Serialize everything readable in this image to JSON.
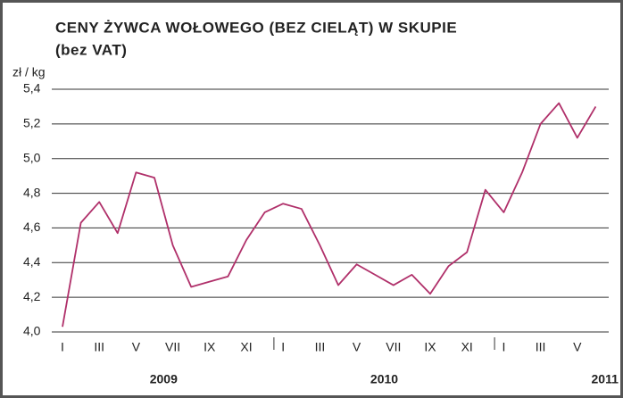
{
  "chart_data": {
    "type": "line",
    "title": "CENY ŻYWCA WOŁOWEGO (BEZ CIELĄT) W SKUPIE",
    "subtitle": "(bez VAT)",
    "y_label": "zł / kg",
    "categories": [
      "I",
      null,
      "III",
      null,
      "V",
      null,
      "VII",
      null,
      "IX",
      null,
      "XI",
      null,
      "I",
      null,
      "III",
      null,
      "V",
      null,
      "VII",
      null,
      "IX",
      null,
      "XI",
      null,
      "I",
      null,
      "III",
      null,
      "V",
      null
    ],
    "years": [
      "2009",
      "2010",
      "2011"
    ],
    "series": [
      {
        "name": "zł / kg",
        "color": "#b0306a",
        "values": [
          4.03,
          4.63,
          4.75,
          4.57,
          4.92,
          4.89,
          4.5,
          4.26,
          4.29,
          4.32,
          4.53,
          4.69,
          4.74,
          4.71,
          4.5,
          4.27,
          4.39,
          4.33,
          4.27,
          4.33,
          4.22,
          4.38,
          4.46,
          4.82,
          4.69,
          4.92,
          5.2,
          5.32,
          5.12,
          5.3
        ]
      }
    ],
    "ylim": [
      4.0,
      5.4
    ],
    "yticks": [
      {
        "value": 4.0,
        "label": "4,0"
      },
      {
        "value": 4.2,
        "label": "4,2"
      },
      {
        "value": 4.4,
        "label": "4,4"
      },
      {
        "value": 4.6,
        "label": "4,6"
      },
      {
        "value": 4.8,
        "label": "4,8"
      },
      {
        "value": 5.0,
        "label": "5,0"
      },
      {
        "value": 5.2,
        "label": "5,2"
      },
      {
        "value": 5.4,
        "label": "5,4"
      }
    ],
    "grid": true
  }
}
